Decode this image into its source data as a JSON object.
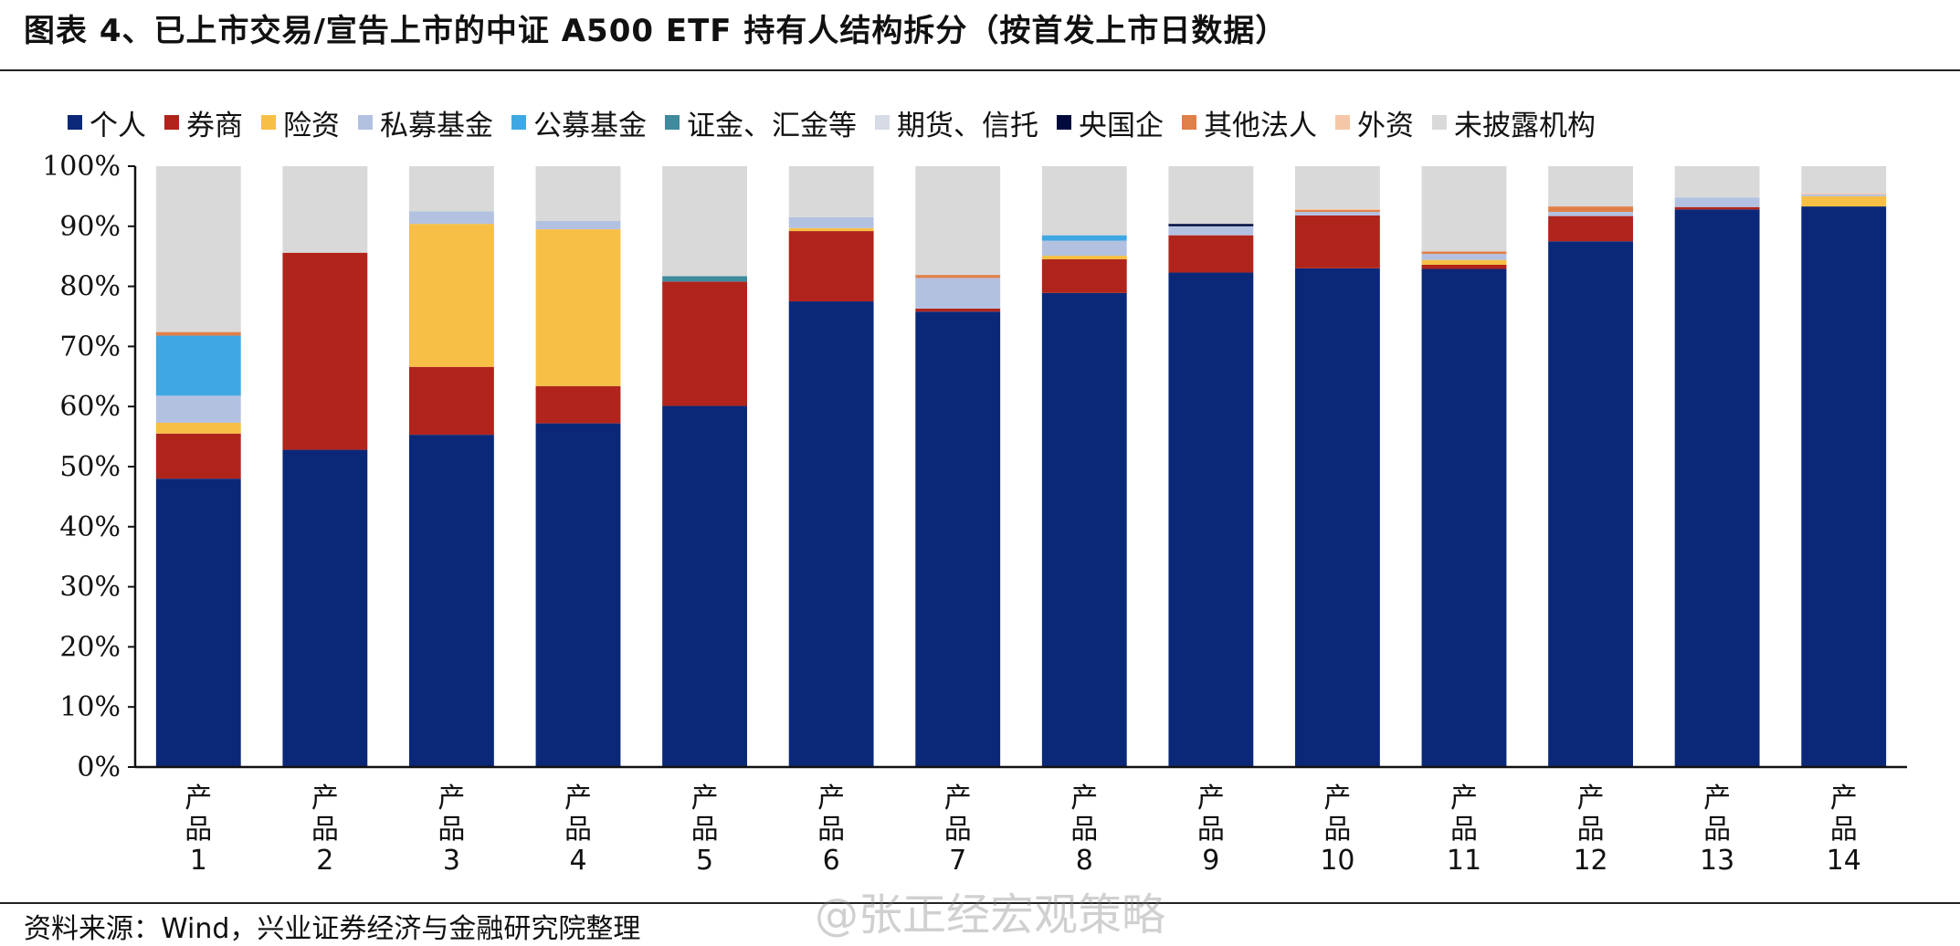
{
  "title": "图表 4、已上市交易/宣告上市的中证 A500 ETF 持有人结构拆分（按首发上市日数据）",
  "source": "资料来源：Wind，兴业证券经济与金融研究院整理",
  "watermark": "@张正经宏观策略",
  "chart_data": {
    "type": "bar",
    "stacked": true,
    "title": "",
    "xlabel": "",
    "ylabel": "",
    "ylim": [
      0,
      100
    ],
    "yticks": [
      "0%",
      "10%",
      "20%",
      "30%",
      "40%",
      "50%",
      "60%",
      "70%",
      "80%",
      "90%",
      "100%"
    ],
    "legend_position": "top",
    "grid": false,
    "categories": [
      "产品1",
      "产品2",
      "产品3",
      "产品4",
      "产品5",
      "产品6",
      "产品7",
      "产品8",
      "产品9",
      "产品10",
      "产品11",
      "产品12",
      "产品13",
      "产品14"
    ],
    "series": [
      {
        "name": "个人",
        "color": "#0b2878",
        "values": [
          48.0,
          52.8,
          55.3,
          57.2,
          60.1,
          77.5,
          75.8,
          78.9,
          82.3,
          83.0,
          82.9,
          87.5,
          92.8,
          93.3
        ]
      },
      {
        "name": "券商",
        "color": "#b0241c",
        "values": [
          7.5,
          32.8,
          11.3,
          6.2,
          20.7,
          11.7,
          0.5,
          5.6,
          6.2,
          8.8,
          0.7,
          4.2,
          0.4,
          0.0
        ]
      },
      {
        "name": "险资",
        "color": "#f7bf45",
        "values": [
          1.8,
          0.0,
          23.8,
          26.1,
          0.0,
          0.5,
          0.0,
          0.6,
          0.0,
          0.0,
          0.8,
          0.0,
          0.0,
          1.7
        ]
      },
      {
        "name": "私募基金",
        "color": "#b3c1e1",
        "values": [
          4.5,
          0.0,
          2.1,
          1.4,
          0.0,
          1.8,
          5.1,
          2.5,
          1.5,
          0.6,
          1.0,
          0.7,
          1.6,
          0.3
        ]
      },
      {
        "name": "公募基金",
        "color": "#3fa8e3",
        "values": [
          10.0,
          0.0,
          0.0,
          0.0,
          0.0,
          0.0,
          0.0,
          0.9,
          0.0,
          0.0,
          0.0,
          0.0,
          0.0,
          0.0
        ]
      },
      {
        "name": "证金、汇金等",
        "color": "#3f8a9c",
        "values": [
          0.0,
          0.0,
          0.0,
          0.0,
          0.9,
          0.0,
          0.0,
          0.0,
          0.0,
          0.0,
          0.0,
          0.0,
          0.0,
          0.0
        ]
      },
      {
        "name": "期货、信托",
        "color": "#d6dbe6",
        "values": [
          0.0,
          0.0,
          0.0,
          0.0,
          0.0,
          0.0,
          0.0,
          0.0,
          0.0,
          0.0,
          0.0,
          0.0,
          0.0,
          0.0
        ]
      },
      {
        "name": "央国企",
        "color": "#000b3c",
        "values": [
          0.0,
          0.0,
          0.0,
          0.0,
          0.0,
          0.0,
          0.0,
          0.0,
          0.4,
          0.0,
          0.0,
          0.0,
          0.0,
          0.0
        ]
      },
      {
        "name": "其他法人",
        "color": "#e07f48",
        "values": [
          0.6,
          0.0,
          0.0,
          0.0,
          0.0,
          0.0,
          0.5,
          0.0,
          0.0,
          0.3,
          0.4,
          0.9,
          0.0,
          0.0
        ]
      },
      {
        "name": "外资",
        "color": "#f5c7a8",
        "values": [
          0.0,
          0.0,
          0.0,
          0.0,
          0.0,
          0.0,
          0.0,
          0.0,
          0.0,
          0.2,
          0.0,
          0.0,
          0.0,
          0.2
        ]
      },
      {
        "name": "未披露机构",
        "color": "#d9d9d9",
        "values": [
          27.6,
          14.4,
          7.5,
          9.1,
          18.3,
          8.5,
          18.1,
          11.5,
          9.6,
          7.1,
          14.2,
          6.7,
          5.2,
          4.5
        ]
      }
    ]
  }
}
